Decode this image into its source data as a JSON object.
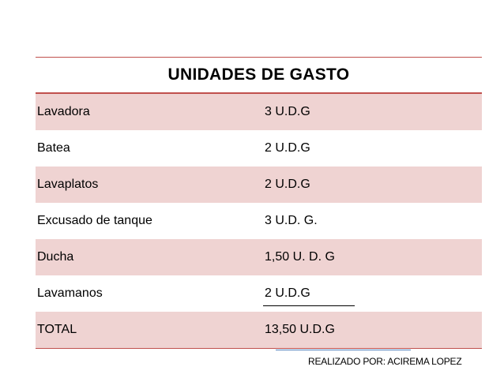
{
  "table": {
    "title": "UNIDADES DE GASTO",
    "rows": [
      {
        "item": "Lavadora",
        "value": "3 U.D.G"
      },
      {
        "item": "Batea",
        "value": "2 U.D.G"
      },
      {
        "item": "Lavaplatos",
        "value": "2 U.D.G"
      },
      {
        "item": "Excusado de tanque",
        "value": "3 U.D. G."
      },
      {
        "item": "Ducha",
        "value": "1,50 U. D. G"
      },
      {
        "item": "Lavamanos",
        "value": "2 U.D.G"
      },
      {
        "item": "TOTAL",
        "value": "13,50 U.D.G"
      }
    ]
  },
  "footer": {
    "credit": "REALIZADO POR: ACIREMA LOPEZ"
  },
  "colors": {
    "accent_rule": "#c0504d",
    "band_fill": "#efd3d2",
    "footer_rule": "#4f81bd"
  }
}
